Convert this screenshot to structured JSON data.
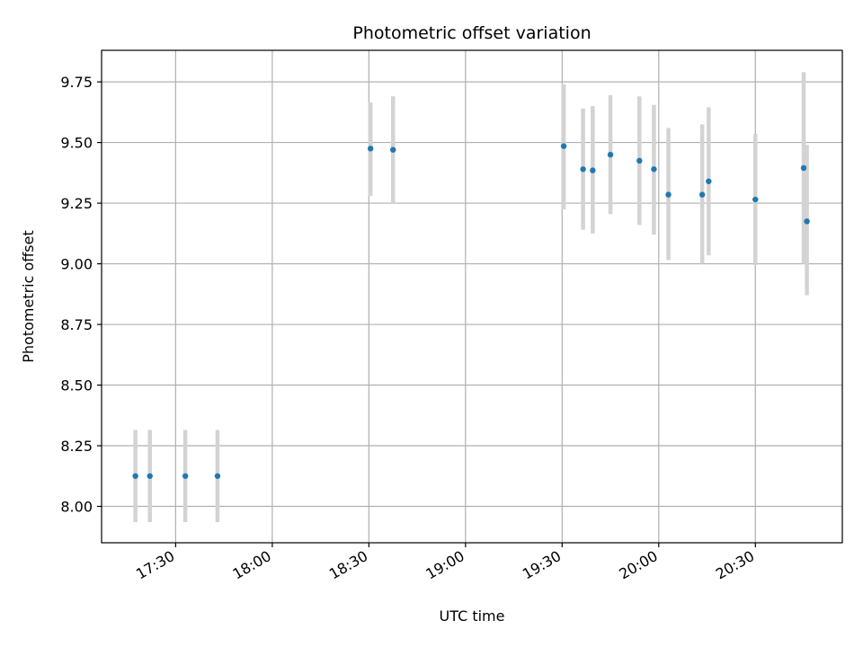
{
  "chart_data": {
    "type": "scatter",
    "title": "Photometric offset variation",
    "xlabel": "UTC time",
    "ylabel": "Photometric offset",
    "xlim_minutes": [
      1027,
      1257
    ],
    "ylim": [
      7.85,
      9.88
    ],
    "grid": true,
    "point_color": "#1f77b4",
    "errorbar_color": "#d3d3d3",
    "x_tick_labels": [
      "17:30",
      "18:00",
      "18:30",
      "19:00",
      "19:30",
      "20:00",
      "20:30"
    ],
    "x_ticks_minutes": [
      1050,
      1080,
      1110,
      1140,
      1170,
      1200,
      1230
    ],
    "y_tick_labels": [
      "8.00",
      "8.25",
      "8.50",
      "8.75",
      "9.00",
      "9.25",
      "9.50",
      "9.75"
    ],
    "y_ticks": [
      8.0,
      8.25,
      8.5,
      8.75,
      9.0,
      9.25,
      9.5,
      9.75
    ],
    "points": [
      {
        "time": "17:17",
        "x": 1037.5,
        "y": 8.125,
        "low": 7.935,
        "high": 8.315
      },
      {
        "time": "17:22",
        "x": 1042.0,
        "y": 8.125,
        "low": 7.935,
        "high": 8.315
      },
      {
        "time": "17:33",
        "x": 1053.0,
        "y": 8.125,
        "low": 7.935,
        "high": 8.315
      },
      {
        "time": "17:43",
        "x": 1063.0,
        "y": 8.125,
        "low": 7.935,
        "high": 8.315
      },
      {
        "time": "18:30",
        "x": 1110.5,
        "y": 9.475,
        "low": 9.28,
        "high": 9.665
      },
      {
        "time": "18:37",
        "x": 1117.5,
        "y": 9.47,
        "low": 9.25,
        "high": 9.69
      },
      {
        "time": "19:30",
        "x": 1170.5,
        "y": 9.485,
        "low": 9.225,
        "high": 9.74
      },
      {
        "time": "19:36",
        "x": 1176.5,
        "y": 9.39,
        "low": 9.14,
        "high": 9.64
      },
      {
        "time": "19:39",
        "x": 1179.5,
        "y": 9.385,
        "low": 9.125,
        "high": 9.65
      },
      {
        "time": "19:45",
        "x": 1185.0,
        "y": 9.45,
        "low": 9.205,
        "high": 9.695
      },
      {
        "time": "19:54",
        "x": 1194.0,
        "y": 9.425,
        "low": 9.16,
        "high": 9.69
      },
      {
        "time": "19:58",
        "x": 1198.5,
        "y": 9.39,
        "low": 9.12,
        "high": 9.655
      },
      {
        "time": "20:03",
        "x": 1203.0,
        "y": 9.285,
        "low": 9.015,
        "high": 9.56
      },
      {
        "time": "20:13",
        "x": 1213.5,
        "y": 9.285,
        "low": 9.0,
        "high": 9.575
      },
      {
        "time": "20:15",
        "x": 1215.5,
        "y": 9.34,
        "low": 9.035,
        "high": 9.645
      },
      {
        "time": "20:30",
        "x": 1230.0,
        "y": 9.265,
        "low": 8.995,
        "high": 9.535
      },
      {
        "time": "20:45",
        "x": 1245.0,
        "y": 9.395,
        "low": 9.0,
        "high": 9.79
      },
      {
        "time": "20:46",
        "x": 1246.0,
        "y": 9.175,
        "low": 8.87,
        "high": 9.49
      }
    ]
  }
}
